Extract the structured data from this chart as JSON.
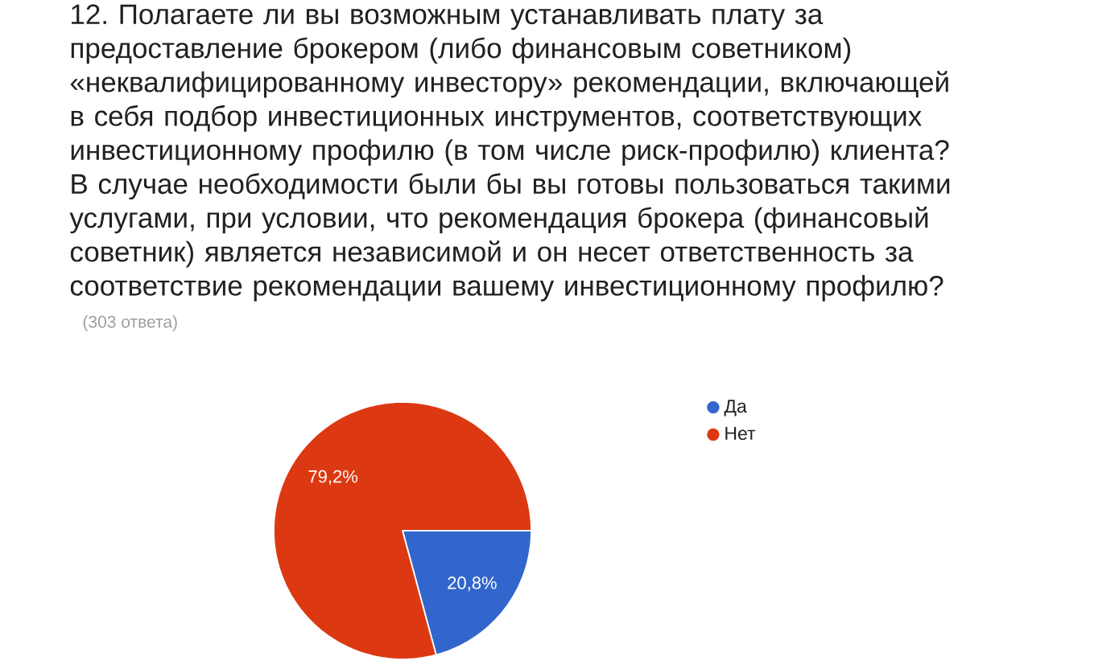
{
  "chart_data": {
    "type": "pie",
    "title": "12. Полагаете ли вы возможным устанавливать плату за предоставление брокером (либо финансовым советником) «неквалифицированному инвестору» рекомендации, включающей в себя подбор инвестиционных инструментов, соответствующих инвестиционному профилю (в том числе риск-профилю) клиента? В случае необходимости были бы вы готовы пользоваться такими услугами, при условии, что рекомендация брокера (финансовый советник) является независимой и он несет ответственность за соответствие рекомендации вашему инвестиционному профилю?",
    "subtitle": "(303 ответа)",
    "categories": [
      "Да",
      "Нет"
    ],
    "values": [
      20.8,
      79.2
    ],
    "colors": [
      "#3366cc",
      "#dc3912"
    ],
    "value_labels": [
      "20,8%",
      "79,2%"
    ],
    "legend": "top right"
  }
}
